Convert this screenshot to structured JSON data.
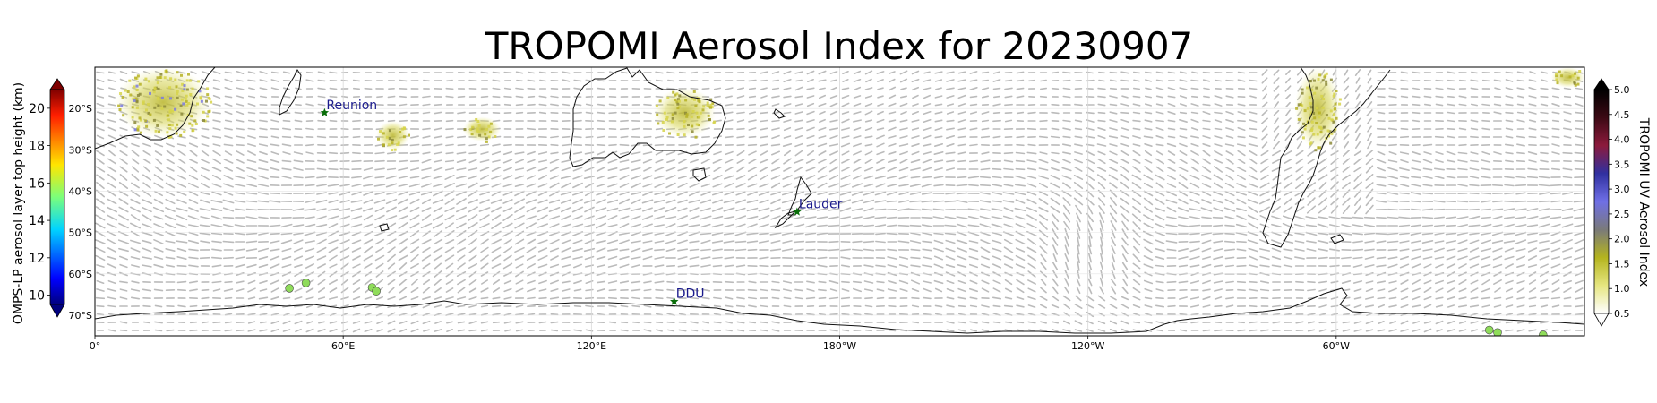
{
  "map": {
    "title": "TROPOMI Aerosol Index for 20230907",
    "projection": "plate-carree",
    "extent": {
      "lon_min": 0,
      "lon_max": 360,
      "lat_min": -75,
      "lat_max": -10
    },
    "lon_ticks": [
      {
        "lon": 0,
        "label": "0°"
      },
      {
        "lon": 60,
        "label": "60°E"
      },
      {
        "lon": 120,
        "label": "120°E"
      },
      {
        "lon": 180,
        "label": "180°W"
      },
      {
        "lon": 240,
        "label": "120°W"
      },
      {
        "lon": 300,
        "label": "60°W"
      }
    ],
    "lat_ticks": [
      {
        "lat": -20,
        "label": "20°S"
      },
      {
        "lat": -30,
        "label": "30°S"
      },
      {
        "lat": -40,
        "label": "40°S"
      },
      {
        "lat": -50,
        "label": "50°S"
      },
      {
        "lat": -60,
        "label": "60°S"
      },
      {
        "lat": -70,
        "label": "70°S"
      }
    ],
    "sites": [
      {
        "name": "Reunion",
        "lon": 55.5,
        "lat": -21.0
      },
      {
        "name": "Lauder",
        "lon": 169.7,
        "lat": -45.0
      },
      {
        "name": "DDU",
        "lon": 140.0,
        "lat": -66.7
      }
    ],
    "colors": {
      "wind_arrows": "#b4b4b4",
      "coastline": "#111111",
      "site_marker": "#0a6e0a",
      "site_label": "#1a1a8c",
      "omps_marker": "#8fdc5a"
    }
  },
  "colorbars": {
    "left": {
      "label": "OMPS-LP aerosol layer top height (km)",
      "min": 9.5,
      "max": 21,
      "ticks": [
        {
          "value": 10,
          "label": "10"
        },
        {
          "value": 12,
          "label": "12"
        },
        {
          "value": 14,
          "label": "14"
        },
        {
          "value": 16,
          "label": "16"
        },
        {
          "value": 18,
          "label": "18"
        },
        {
          "value": 20,
          "label": "20"
        }
      ],
      "colormap": "jet"
    },
    "right": {
      "label": "TROPOMI UV Aerosol Index",
      "min": 0.5,
      "max": 5.0,
      "ticks": [
        {
          "value": 0.5,
          "label": "0.5"
        },
        {
          "value": 1.0,
          "label": "1.0"
        },
        {
          "value": 1.5,
          "label": "1.5"
        },
        {
          "value": 2.0,
          "label": "2.0"
        },
        {
          "value": 2.5,
          "label": "2.5"
        },
        {
          "value": 3.0,
          "label": "3.0"
        },
        {
          "value": 3.5,
          "label": "3.5"
        },
        {
          "value": 4.0,
          "label": "4.0"
        },
        {
          "value": 4.5,
          "label": "4.5"
        },
        {
          "value": 5.0,
          "label": "5.0"
        }
      ],
      "stops": [
        "#ffffff",
        "#e6e680",
        "#b4b41e",
        "#7a7a7a",
        "#6f6fe6",
        "#3030a0",
        "#8c1a3c",
        "#3c0a14",
        "#000000"
      ]
    }
  },
  "chart_data": {
    "type": "map",
    "title": "TROPOMI Aerosol Index for 20230907",
    "omps_points": [
      {
        "lon": 47,
        "lat": -63.5,
        "height_km": 15.0
      },
      {
        "lon": 51,
        "lat": -62.2,
        "height_km": 15.0
      },
      {
        "lon": 67,
        "lat": -63.3,
        "height_km": 15.0
      },
      {
        "lon": 68,
        "lat": -64.2,
        "height_km": 15.0
      },
      {
        "lon": 337,
        "lat": -73.6,
        "height_km": 15.0
      },
      {
        "lon": 339,
        "lat": -74.2,
        "height_km": 15.0
      },
      {
        "lon": 350,
        "lat": -74.8,
        "height_km": 15.0
      }
    ],
    "aerosol_index_regions": [
      {
        "area": "southern Africa",
        "lon_min": 5,
        "lon_max": 28,
        "lat_min": -27,
        "lat_max": -10,
        "max_index": 2.8
      },
      {
        "area": "Indian Ocean",
        "lon_min": 68,
        "lon_max": 76,
        "lat_min": -30,
        "lat_max": -23,
        "max_index": 1.5
      },
      {
        "area": "Indian Ocean",
        "lon_min": 89,
        "lon_max": 98,
        "lat_min": -28,
        "lat_max": -22,
        "max_index": 1.5
      },
      {
        "area": "Australia",
        "lon_min": 135,
        "lon_max": 150,
        "lat_min": -27,
        "lat_max": -15,
        "max_index": 2.0
      },
      {
        "area": "South America",
        "lon_min": 290,
        "lon_max": 301,
        "lat_min": -30,
        "lat_max": -10,
        "max_index": 2.2
      },
      {
        "area": "South Atlantic",
        "lon_min": 352,
        "lon_max": 360,
        "lat_min": -15,
        "lat_max": -10,
        "max_index": 1.5
      }
    ]
  }
}
